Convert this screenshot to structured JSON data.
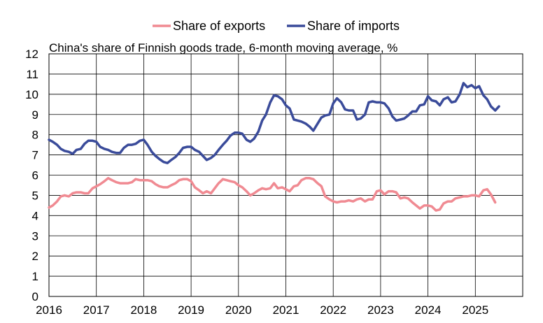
{
  "chart_data": {
    "type": "line",
    "title": "China's share of Finnish goods trade, 6-month moving average, %",
    "legend_position": "top-center",
    "grid": true,
    "ylim": [
      0,
      12
    ],
    "yticks": [
      "0",
      "1",
      "2",
      "3",
      "4",
      "5",
      "6",
      "7",
      "8",
      "9",
      "10",
      "11",
      "12"
    ],
    "xlim": [
      2016,
      2026
    ],
    "xticks": [
      "2016",
      "2017",
      "2018",
      "2019",
      "2020",
      "2021",
      "2022",
      "2023",
      "2024",
      "2025"
    ],
    "series": [
      {
        "name": "Share of exports",
        "color": "#f08a92",
        "points": [
          [
            2016.0,
            4.4
          ],
          [
            2016.08,
            4.5
          ],
          [
            2016.17,
            4.7
          ],
          [
            2016.25,
            4.95
          ],
          [
            2016.33,
            5.0
          ],
          [
            2016.42,
            4.95
          ],
          [
            2016.5,
            5.1
          ],
          [
            2016.58,
            5.15
          ],
          [
            2016.67,
            5.15
          ],
          [
            2016.75,
            5.1
          ],
          [
            2016.83,
            5.1
          ],
          [
            2016.92,
            5.35
          ],
          [
            2017.0,
            5.45
          ],
          [
            2017.08,
            5.55
          ],
          [
            2017.17,
            5.7
          ],
          [
            2017.25,
            5.85
          ],
          [
            2017.33,
            5.75
          ],
          [
            2017.42,
            5.65
          ],
          [
            2017.5,
            5.6
          ],
          [
            2017.58,
            5.6
          ],
          [
            2017.67,
            5.6
          ],
          [
            2017.75,
            5.65
          ],
          [
            2017.83,
            5.8
          ],
          [
            2017.92,
            5.75
          ],
          [
            2018.0,
            5.75
          ],
          [
            2018.08,
            5.75
          ],
          [
            2018.17,
            5.7
          ],
          [
            2018.25,
            5.55
          ],
          [
            2018.33,
            5.45
          ],
          [
            2018.42,
            5.4
          ],
          [
            2018.5,
            5.4
          ],
          [
            2018.58,
            5.5
          ],
          [
            2018.67,
            5.6
          ],
          [
            2018.75,
            5.75
          ],
          [
            2018.83,
            5.8
          ],
          [
            2018.92,
            5.8
          ],
          [
            2019.0,
            5.7
          ],
          [
            2019.08,
            5.4
          ],
          [
            2019.17,
            5.25
          ],
          [
            2019.25,
            5.1
          ],
          [
            2019.33,
            5.2
          ],
          [
            2019.42,
            5.1
          ],
          [
            2019.5,
            5.35
          ],
          [
            2019.58,
            5.6
          ],
          [
            2019.67,
            5.8
          ],
          [
            2019.75,
            5.75
          ],
          [
            2019.83,
            5.7
          ],
          [
            2019.92,
            5.65
          ],
          [
            2020.0,
            5.5
          ],
          [
            2020.08,
            5.4
          ],
          [
            2020.17,
            5.2
          ],
          [
            2020.25,
            5.0
          ],
          [
            2020.33,
            5.1
          ],
          [
            2020.42,
            5.25
          ],
          [
            2020.5,
            5.35
          ],
          [
            2020.58,
            5.3
          ],
          [
            2020.67,
            5.35
          ],
          [
            2020.75,
            5.6
          ],
          [
            2020.83,
            5.35
          ],
          [
            2020.92,
            5.4
          ],
          [
            2021.0,
            5.3
          ],
          [
            2021.08,
            5.2
          ],
          [
            2021.17,
            5.45
          ],
          [
            2021.25,
            5.5
          ],
          [
            2021.33,
            5.75
          ],
          [
            2021.42,
            5.85
          ],
          [
            2021.5,
            5.85
          ],
          [
            2021.58,
            5.8
          ],
          [
            2021.67,
            5.6
          ],
          [
            2021.75,
            5.45
          ],
          [
            2021.83,
            4.95
          ],
          [
            2021.92,
            4.8
          ],
          [
            2022.0,
            4.7
          ],
          [
            2022.08,
            4.65
          ],
          [
            2022.17,
            4.7
          ],
          [
            2022.25,
            4.7
          ],
          [
            2022.33,
            4.75
          ],
          [
            2022.42,
            4.7
          ],
          [
            2022.5,
            4.8
          ],
          [
            2022.58,
            4.85
          ],
          [
            2022.67,
            4.7
          ],
          [
            2022.75,
            4.8
          ],
          [
            2022.83,
            4.8
          ],
          [
            2022.92,
            5.2
          ],
          [
            2023.0,
            5.25
          ],
          [
            2023.08,
            5.05
          ],
          [
            2023.17,
            5.2
          ],
          [
            2023.25,
            5.2
          ],
          [
            2023.33,
            5.15
          ],
          [
            2023.42,
            4.85
          ],
          [
            2023.5,
            4.9
          ],
          [
            2023.58,
            4.85
          ],
          [
            2023.67,
            4.65
          ],
          [
            2023.75,
            4.5
          ],
          [
            2023.83,
            4.35
          ],
          [
            2023.92,
            4.5
          ],
          [
            2024.0,
            4.5
          ],
          [
            2024.08,
            4.45
          ],
          [
            2024.17,
            4.25
          ],
          [
            2024.25,
            4.3
          ],
          [
            2024.33,
            4.6
          ],
          [
            2024.42,
            4.7
          ],
          [
            2024.5,
            4.7
          ],
          [
            2024.58,
            4.85
          ],
          [
            2024.67,
            4.9
          ],
          [
            2024.75,
            4.95
          ],
          [
            2024.83,
            4.95
          ],
          [
            2024.92,
            5.0
          ],
          [
            2025.0,
            5.0
          ],
          [
            2025.08,
            4.95
          ],
          [
            2025.17,
            5.25
          ],
          [
            2025.25,
            5.3
          ],
          [
            2025.33,
            5.05
          ],
          [
            2025.42,
            4.65
          ]
        ]
      },
      {
        "name": "Share of imports",
        "color": "#3a4b9a",
        "points": [
          [
            2016.0,
            7.75
          ],
          [
            2016.08,
            7.65
          ],
          [
            2016.17,
            7.5
          ],
          [
            2016.25,
            7.3
          ],
          [
            2016.33,
            7.2
          ],
          [
            2016.42,
            7.15
          ],
          [
            2016.5,
            7.05
          ],
          [
            2016.58,
            7.25
          ],
          [
            2016.67,
            7.3
          ],
          [
            2016.75,
            7.55
          ],
          [
            2016.83,
            7.7
          ],
          [
            2016.92,
            7.7
          ],
          [
            2017.0,
            7.65
          ],
          [
            2017.08,
            7.4
          ],
          [
            2017.17,
            7.3
          ],
          [
            2017.25,
            7.25
          ],
          [
            2017.33,
            7.15
          ],
          [
            2017.42,
            7.1
          ],
          [
            2017.5,
            7.1
          ],
          [
            2017.58,
            7.35
          ],
          [
            2017.67,
            7.5
          ],
          [
            2017.75,
            7.5
          ],
          [
            2017.83,
            7.55
          ],
          [
            2017.92,
            7.7
          ],
          [
            2018.0,
            7.75
          ],
          [
            2018.08,
            7.5
          ],
          [
            2018.17,
            7.15
          ],
          [
            2018.25,
            6.95
          ],
          [
            2018.33,
            6.8
          ],
          [
            2018.42,
            6.65
          ],
          [
            2018.5,
            6.6
          ],
          [
            2018.58,
            6.75
          ],
          [
            2018.67,
            6.9
          ],
          [
            2018.75,
            7.1
          ],
          [
            2018.83,
            7.35
          ],
          [
            2018.92,
            7.4
          ],
          [
            2019.0,
            7.4
          ],
          [
            2019.08,
            7.25
          ],
          [
            2019.17,
            7.15
          ],
          [
            2019.25,
            6.95
          ],
          [
            2019.33,
            6.75
          ],
          [
            2019.42,
            6.85
          ],
          [
            2019.5,
            7.0
          ],
          [
            2019.58,
            7.25
          ],
          [
            2019.67,
            7.5
          ],
          [
            2019.75,
            7.7
          ],
          [
            2019.83,
            7.95
          ],
          [
            2019.92,
            8.1
          ],
          [
            2020.0,
            8.1
          ],
          [
            2020.08,
            8.05
          ],
          [
            2020.17,
            7.75
          ],
          [
            2020.25,
            7.65
          ],
          [
            2020.33,
            7.8
          ],
          [
            2020.42,
            8.15
          ],
          [
            2020.5,
            8.7
          ],
          [
            2020.58,
            9.0
          ],
          [
            2020.67,
            9.6
          ],
          [
            2020.75,
            9.95
          ],
          [
            2020.83,
            9.9
          ],
          [
            2020.92,
            9.75
          ],
          [
            2021.0,
            9.45
          ],
          [
            2021.08,
            9.3
          ],
          [
            2021.17,
            8.75
          ],
          [
            2021.25,
            8.7
          ],
          [
            2021.33,
            8.65
          ],
          [
            2021.42,
            8.55
          ],
          [
            2021.5,
            8.4
          ],
          [
            2021.58,
            8.2
          ],
          [
            2021.67,
            8.55
          ],
          [
            2021.75,
            8.85
          ],
          [
            2021.83,
            8.95
          ],
          [
            2021.92,
            9.0
          ],
          [
            2022.0,
            9.55
          ],
          [
            2022.08,
            9.8
          ],
          [
            2022.17,
            9.6
          ],
          [
            2022.25,
            9.25
          ],
          [
            2022.33,
            9.2
          ],
          [
            2022.42,
            9.2
          ],
          [
            2022.5,
            8.75
          ],
          [
            2022.58,
            8.8
          ],
          [
            2022.67,
            9.0
          ],
          [
            2022.75,
            9.6
          ],
          [
            2022.83,
            9.65
          ],
          [
            2022.92,
            9.6
          ],
          [
            2023.0,
            9.6
          ],
          [
            2023.08,
            9.55
          ],
          [
            2023.17,
            9.3
          ],
          [
            2023.25,
            8.9
          ],
          [
            2023.33,
            8.7
          ],
          [
            2023.42,
            8.75
          ],
          [
            2023.5,
            8.8
          ],
          [
            2023.58,
            8.95
          ],
          [
            2023.67,
            9.15
          ],
          [
            2023.75,
            9.15
          ],
          [
            2023.83,
            9.45
          ],
          [
            2023.92,
            9.5
          ],
          [
            2024.0,
            9.9
          ],
          [
            2024.08,
            9.7
          ],
          [
            2024.17,
            9.65
          ],
          [
            2024.25,
            9.45
          ],
          [
            2024.33,
            9.75
          ],
          [
            2024.42,
            9.85
          ],
          [
            2024.5,
            9.6
          ],
          [
            2024.58,
            9.65
          ],
          [
            2024.67,
            10.0
          ],
          [
            2024.75,
            10.55
          ],
          [
            2024.83,
            10.35
          ],
          [
            2024.92,
            10.45
          ],
          [
            2025.0,
            10.3
          ],
          [
            2025.08,
            10.4
          ],
          [
            2025.17,
            9.95
          ],
          [
            2025.25,
            9.75
          ],
          [
            2025.33,
            9.4
          ],
          [
            2025.42,
            9.2
          ],
          [
            2025.5,
            9.4
          ]
        ]
      }
    ]
  }
}
